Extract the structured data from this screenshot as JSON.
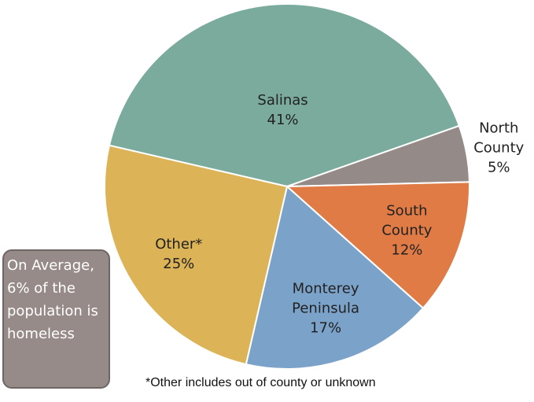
{
  "chart_data": {
    "type": "pie",
    "categories": [
      "Salinas",
      "North County",
      "South County",
      "Monterey Peninsula",
      "Other*"
    ],
    "values": [
      41,
      5,
      12,
      17,
      25
    ],
    "value_labels": [
      "41%",
      "5%",
      "12%",
      "17%",
      "25%"
    ],
    "colors": [
      "#7aab9c",
      "#948a87",
      "#e07b45",
      "#7ba3c9",
      "#dcb356"
    ],
    "callout": "On Average, 6% of the population is homeless",
    "footnote": "*Other includes out of county or unknown"
  }
}
